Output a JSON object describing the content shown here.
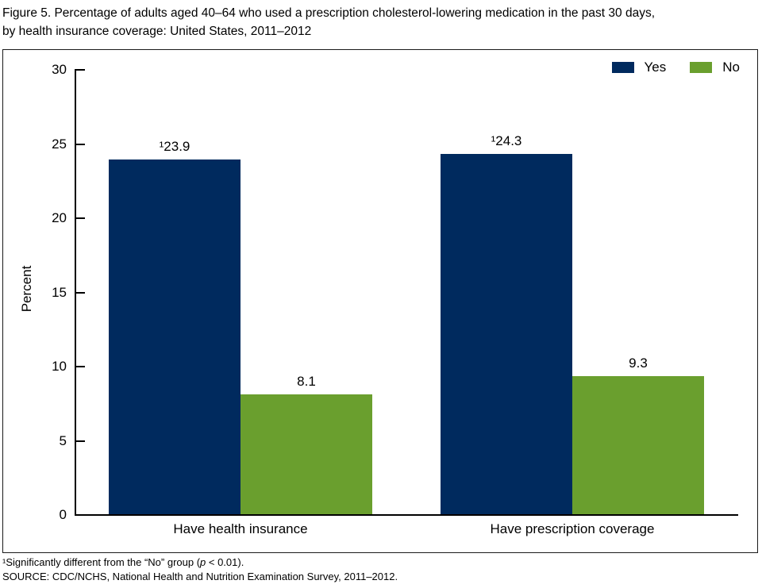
{
  "title": {
    "line1": "Figure 5. Percentage of adults aged 40–64 who used a prescription cholesterol-lowering medication in the past 30 days,",
    "line2": "by health insurance coverage: United States, 2011–2012"
  },
  "chart_data": {
    "type": "bar",
    "categories": [
      "Have health insurance",
      "Have prescription coverage"
    ],
    "series": [
      {
        "name": "Yes",
        "color": "#002a5e",
        "values": [
          23.9,
          24.3
        ],
        "value_labels": [
          "¹23.9",
          "¹24.3"
        ]
      },
      {
        "name": "No",
        "color": "#6a9f2e",
        "values": [
          8.1,
          9.3
        ],
        "value_labels": [
          "8.1",
          "9.3"
        ]
      }
    ],
    "ylabel": "Percent",
    "ylim": [
      0,
      30
    ],
    "yticks": [
      0,
      5,
      10,
      15,
      20,
      25,
      30
    ],
    "legend_position": "top-right",
    "grid": false
  },
  "footnotes": {
    "note1_pre": "¹Significantly different from the “No” group (",
    "note1_italic": "p",
    "note1_post": " < 0.01).",
    "source": "SOURCE: CDC/NCHS, National Health and Nutrition Examination Survey, 2011–2012."
  }
}
